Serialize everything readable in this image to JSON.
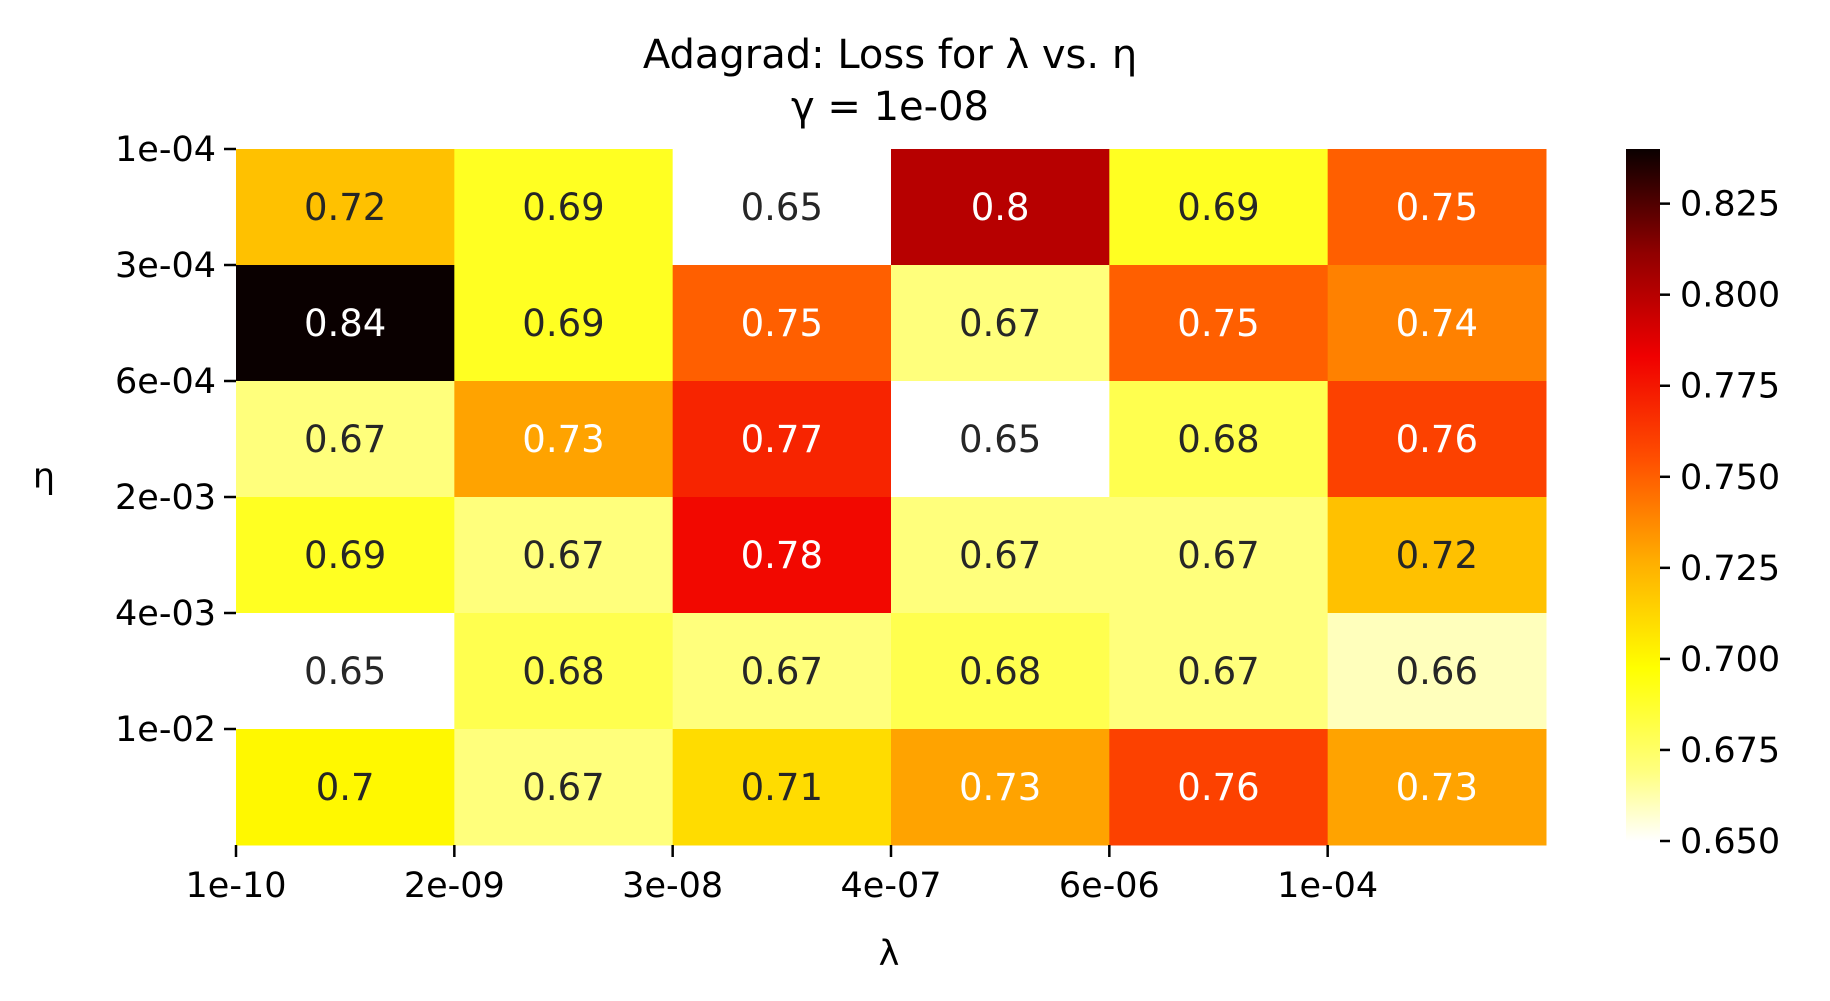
{
  "chart_data": {
    "type": "heatmap",
    "title": "Adagrad: Loss for λ vs. η",
    "subtitle": "γ = 1e-08",
    "xlabel": "λ",
    "ylabel": "η",
    "x_ticks": [
      "1e-10",
      "2e-09",
      "3e-08",
      "4e-07",
      "6e-06",
      "1e-04"
    ],
    "y_ticks": [
      "1e-04",
      "3e-04",
      "6e-04",
      "2e-03",
      "4e-03",
      "1e-02"
    ],
    "values": [
      [
        0.72,
        0.69,
        0.65,
        0.8,
        0.69,
        0.75
      ],
      [
        0.84,
        0.69,
        0.75,
        0.67,
        0.75,
        0.74
      ],
      [
        0.67,
        0.73,
        0.77,
        0.65,
        0.68,
        0.76
      ],
      [
        0.69,
        0.67,
        0.78,
        0.67,
        0.67,
        0.72
      ],
      [
        0.65,
        0.68,
        0.67,
        0.68,
        0.67,
        0.66
      ],
      [
        0.7,
        0.67,
        0.71,
        0.73,
        0.76,
        0.73
      ]
    ],
    "cell_labels": [
      [
        "0.72",
        "0.69",
        "0.65",
        "0.8",
        "0.69",
        "0.75"
      ],
      [
        "0.84",
        "0.69",
        "0.75",
        "0.67",
        "0.75",
        "0.74"
      ],
      [
        "0.67",
        "0.73",
        "0.77",
        "0.65",
        "0.68",
        "0.76"
      ],
      [
        "0.69",
        "0.67",
        "0.78",
        "0.67",
        "0.67",
        "0.72"
      ],
      [
        "0.65",
        "0.68",
        "0.67",
        "0.68",
        "0.67",
        "0.66"
      ],
      [
        "0.7",
        "0.67",
        "0.71",
        "0.73",
        "0.76",
        "0.73"
      ]
    ],
    "colormap": "hot_r",
    "colorbar": {
      "range": [
        0.65,
        0.84
      ],
      "ticks": [
        "0.650",
        "0.675",
        "0.700",
        "0.725",
        "0.750",
        "0.775",
        "0.800",
        "0.825"
      ]
    },
    "grid": false,
    "legend": "colorbar-right"
  }
}
